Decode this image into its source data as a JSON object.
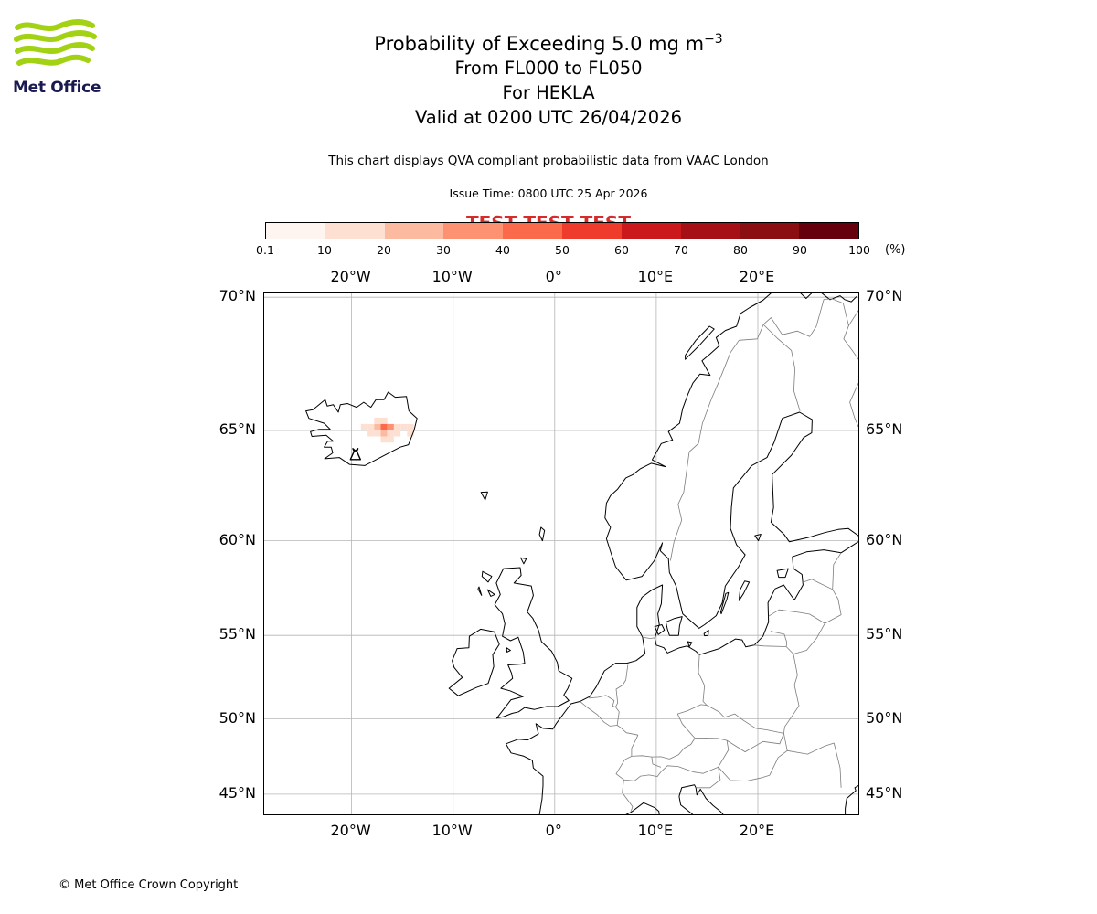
{
  "logo": {
    "text": "Met Office"
  },
  "header": {
    "title": "Probability of Exceeding 5.0 mg m",
    "title_sup": "−3",
    "flight_levels": "From FL000 to FL050",
    "volcano_line": "For HEKLA",
    "valid_line": "Valid at 0200 UTC 26/04/2026",
    "disclaimer": "This chart displays QVA compliant probabilistic data from VAAC London",
    "issue_line": "Issue Time: 0800 UTC 25 Apr 2026",
    "test_banner": "TEST TEST TEST"
  },
  "colorbar": {
    "tick_labels": [
      "0.1",
      "10",
      "20",
      "30",
      "40",
      "50",
      "60",
      "70",
      "80",
      "90",
      "100"
    ],
    "unit": "(%)",
    "colors": [
      "#fff5f0",
      "#fee0d2",
      "#fcbba1",
      "#fc9272",
      "#fb6a4a",
      "#ef3b2c",
      "#cb181d",
      "#a50f15",
      "#8a0e12",
      "#67000d"
    ]
  },
  "map": {
    "lon_ticks": [
      {
        "v": -20,
        "label": "20°W"
      },
      {
        "v": -10,
        "label": "10°W"
      },
      {
        "v": 0,
        "label": "0°"
      },
      {
        "v": 10,
        "label": "10°E"
      },
      {
        "v": 20,
        "label": "20°E"
      }
    ],
    "lat_ticks": [
      {
        "v": 70,
        "label": "70°N"
      },
      {
        "v": 65,
        "label": "65°N"
      },
      {
        "v": 60,
        "label": "60°N"
      },
      {
        "v": 55,
        "label": "55°N"
      },
      {
        "v": 50,
        "label": "50°N"
      },
      {
        "v": 45,
        "label": "45°N"
      }
    ]
  },
  "chart_data": {
    "type": "heatmap",
    "title": "Probability of Exceeding 5.0 mg m−3",
    "layer": "FL000 to FL050",
    "volcano": {
      "name": "HEKLA",
      "lon": -19.62,
      "lat": 63.98
    },
    "valid_time": "0200 UTC 26/04/2026",
    "issue_time": "0800 UTC 25 Apr 2026",
    "source": "VAAC London",
    "unit": "%",
    "scale_ticks": [
      0.1,
      10,
      20,
      30,
      40,
      50,
      60,
      70,
      80,
      90,
      100
    ],
    "map_extent": {
      "lon_min": -28.6,
      "lon_max": 29.9,
      "lat_min": 43.57,
      "lat_max": 70.13
    },
    "grid_on": true,
    "cell_size": {
      "dlon": 0.65,
      "dlat": 0.26
    },
    "cells": [
      {
        "lon": -17.45,
        "lat": 65.4,
        "pct": 15
      },
      {
        "lon": -16.8,
        "lat": 65.4,
        "pct": 12
      },
      {
        "lon": -18.75,
        "lat": 65.14,
        "pct": 12
      },
      {
        "lon": -18.1,
        "lat": 65.14,
        "pct": 18
      },
      {
        "lon": -17.45,
        "lat": 65.14,
        "pct": 25
      },
      {
        "lon": -16.8,
        "lat": 65.14,
        "pct": 45
      },
      {
        "lon": -16.15,
        "lat": 65.14,
        "pct": 32
      },
      {
        "lon": -15.5,
        "lat": 65.14,
        "pct": 18
      },
      {
        "lon": -14.85,
        "lat": 65.14,
        "pct": 12
      },
      {
        "lon": -14.2,
        "lat": 65.14,
        "pct": 10
      },
      {
        "lon": -18.1,
        "lat": 64.88,
        "pct": 10
      },
      {
        "lon": -17.45,
        "lat": 64.88,
        "pct": 15
      },
      {
        "lon": -16.8,
        "lat": 64.88,
        "pct": 20
      },
      {
        "lon": -16.15,
        "lat": 64.88,
        "pct": 15
      },
      {
        "lon": -15.5,
        "lat": 64.88,
        "pct": 12
      },
      {
        "lon": -14.2,
        "lat": 64.88,
        "pct": 10
      },
      {
        "lon": -16.8,
        "lat": 64.62,
        "pct": 10
      },
      {
        "lon": -16.15,
        "lat": 64.62,
        "pct": 10
      }
    ]
  },
  "footer": {
    "copyright": "© Met Office Crown Copyright"
  }
}
